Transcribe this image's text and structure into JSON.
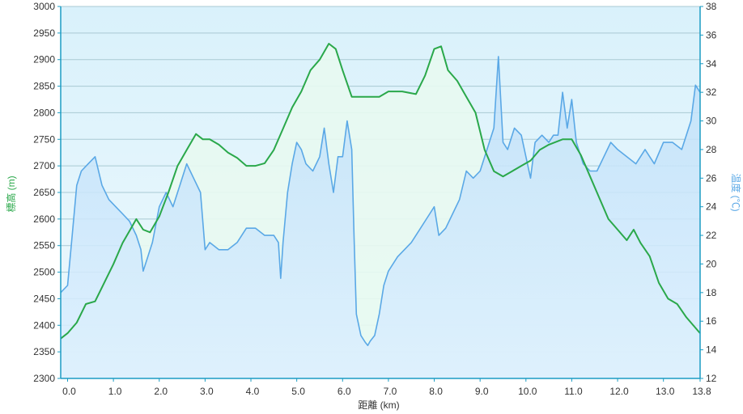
{
  "chart_data": {
    "type": "line",
    "title": "",
    "xlabel": "距離 (km)",
    "ylabel_left": "標高 (m)",
    "ylabel_right": "温度 (℃)",
    "xlim": [
      -0.15,
      13.8
    ],
    "ylim_left": [
      2300,
      3000
    ],
    "ylim_right": [
      12,
      38
    ],
    "x_ticks": [
      "0.0",
      "1.0",
      "2.0",
      "3.0",
      "4.0",
      "5.0",
      "6.0",
      "7.0",
      "8.0",
      "9.0",
      "10.0",
      "11.0",
      "12.0",
      "13.0",
      "13.8"
    ],
    "x_tick_values": [
      0,
      1,
      2,
      3,
      4,
      5,
      6,
      7,
      8,
      9,
      10,
      11,
      12,
      13,
      13.8
    ],
    "y_ticks_left": [
      "2300",
      "2350",
      "2400",
      "2450",
      "2500",
      "2550",
      "2600",
      "2650",
      "2700",
      "2750",
      "2800",
      "2850",
      "2900",
      "2950",
      "3000"
    ],
    "y_ticks_right": [
      "12",
      "14",
      "16",
      "18",
      "20",
      "22",
      "24",
      "26",
      "28",
      "30",
      "32",
      "34",
      "36",
      "38"
    ],
    "grid": true,
    "colors": {
      "elevation": "#2aa84a",
      "temperature": "#5aa8e6",
      "axis": "#1b9cc4",
      "left_title": "#2aa84a",
      "right_title": "#5aa8e6"
    },
    "series": [
      {
        "name": "標高 (m)",
        "axis": "left",
        "x": [
          -0.15,
          0.0,
          0.2,
          0.4,
          0.6,
          0.8,
          1.0,
          1.2,
          1.4,
          1.5,
          1.65,
          1.8,
          2.0,
          2.2,
          2.4,
          2.6,
          2.8,
          2.95,
          3.1,
          3.3,
          3.5,
          3.7,
          3.9,
          4.1,
          4.3,
          4.5,
          4.7,
          4.9,
          5.1,
          5.3,
          5.5,
          5.7,
          5.85,
          6.0,
          6.2,
          6.5,
          6.8,
          7.0,
          7.3,
          7.6,
          7.8,
          8.0,
          8.15,
          8.3,
          8.5,
          8.7,
          8.9,
          9.1,
          9.3,
          9.5,
          9.7,
          9.9,
          10.1,
          10.3,
          10.5,
          10.8,
          11.0,
          11.2,
          11.4,
          11.6,
          11.8,
          12.0,
          12.2,
          12.35,
          12.5,
          12.7,
          12.9,
          13.1,
          13.3,
          13.5,
          13.8
        ],
        "values": [
          2375,
          2385,
          2405,
          2440,
          2445,
          2480,
          2515,
          2555,
          2585,
          2600,
          2580,
          2575,
          2605,
          2650,
          2700,
          2730,
          2760,
          2750,
          2750,
          2740,
          2725,
          2715,
          2700,
          2700,
          2705,
          2730,
          2770,
          2810,
          2840,
          2880,
          2900,
          2930,
          2920,
          2880,
          2830,
          2830,
          2830,
          2840,
          2840,
          2835,
          2870,
          2920,
          2925,
          2880,
          2860,
          2830,
          2800,
          2730,
          2690,
          2680,
          2690,
          2700,
          2710,
          2730,
          2740,
          2750,
          2750,
          2720,
          2680,
          2640,
          2600,
          2580,
          2560,
          2580,
          2555,
          2530,
          2480,
          2450,
          2440,
          2415,
          2385
        ]
      },
      {
        "name": "温度 (℃)",
        "axis": "right",
        "x": [
          -0.15,
          0.0,
          0.1,
          0.2,
          0.3,
          0.45,
          0.6,
          0.75,
          0.9,
          1.05,
          1.2,
          1.35,
          1.5,
          1.6,
          1.65,
          1.75,
          1.85,
          2.0,
          2.15,
          2.3,
          2.45,
          2.6,
          2.75,
          2.9,
          3.0,
          3.1,
          3.3,
          3.5,
          3.7,
          3.9,
          4.1,
          4.3,
          4.5,
          4.6,
          4.65,
          4.7,
          4.8,
          4.9,
          5.0,
          5.1,
          5.2,
          5.35,
          5.5,
          5.6,
          5.7,
          5.8,
          5.9,
          6.0,
          6.1,
          6.2,
          6.25,
          6.3,
          6.4,
          6.5,
          6.55,
          6.6,
          6.7,
          6.8,
          6.9,
          7.0,
          7.2,
          7.5,
          7.7,
          7.9,
          8.0,
          8.1,
          8.25,
          8.4,
          8.55,
          8.7,
          8.85,
          9.0,
          9.15,
          9.3,
          9.4,
          9.5,
          9.6,
          9.75,
          9.9,
          10.0,
          10.1,
          10.2,
          10.35,
          10.5,
          10.6,
          10.7,
          10.8,
          10.9,
          11.0,
          11.1,
          11.25,
          11.4,
          11.55,
          11.7,
          11.85,
          12.0,
          12.2,
          12.4,
          12.6,
          12.8,
          13.0,
          13.2,
          13.4,
          13.5,
          13.6,
          13.7,
          13.8
        ],
        "values": [
          18.0,
          18.5,
          22.0,
          25.5,
          26.5,
          27.0,
          27.5,
          25.5,
          24.5,
          24.0,
          23.5,
          23.0,
          22.0,
          21.0,
          19.5,
          20.5,
          21.5,
          24.0,
          25.0,
          24.0,
          25.5,
          27.0,
          26.0,
          25.0,
          21.0,
          21.5,
          21.0,
          21.0,
          21.5,
          22.5,
          22.5,
          22.0,
          22.0,
          21.5,
          19.0,
          21.5,
          25.0,
          27.0,
          28.5,
          28.0,
          27.0,
          26.5,
          27.5,
          29.5,
          27.0,
          25.0,
          27.5,
          27.5,
          30.0,
          28.0,
          22.0,
          16.5,
          15.0,
          14.5,
          14.3,
          14.6,
          15.0,
          16.5,
          18.5,
          19.5,
          20.5,
          21.5,
          22.5,
          23.5,
          24.0,
          22.0,
          22.5,
          23.5,
          24.5,
          26.5,
          26.0,
          26.5,
          28.0,
          29.5,
          34.5,
          28.5,
          28.0,
          29.5,
          29.0,
          27.5,
          26.0,
          28.5,
          29.0,
          28.5,
          29.0,
          29.0,
          32.0,
          29.5,
          31.5,
          28.5,
          27.0,
          26.5,
          26.5,
          27.5,
          28.5,
          28.0,
          27.5,
          27.0,
          28.0,
          27.0,
          28.5,
          28.5,
          28.0,
          29.0,
          30.0,
          32.5,
          32.0
        ]
      }
    ]
  }
}
